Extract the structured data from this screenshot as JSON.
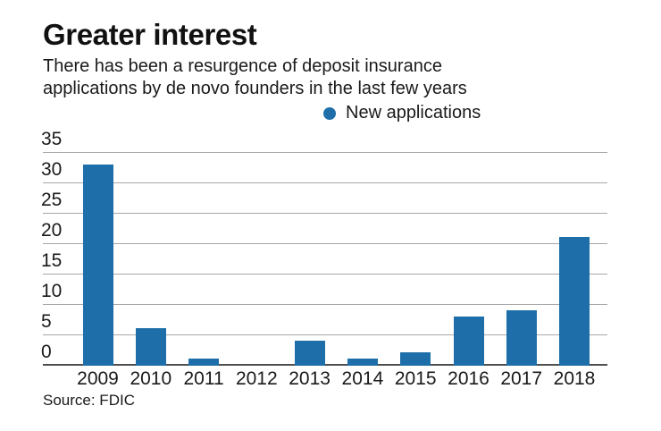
{
  "header": {
    "title": "Greater interest",
    "subtitle_line1": "There has been a resurgence of deposit insurance",
    "subtitle_line2": "applications by de novo founders in the last few years"
  },
  "legend": {
    "label": "New applications"
  },
  "chart_data": {
    "type": "bar",
    "title": "Greater interest",
    "subtitle": "There has been a resurgence of deposit insurance applications by de novo founders in the last few years",
    "series_name": "New applications",
    "categories": [
      "2009",
      "2010",
      "2011",
      "2012",
      "2013",
      "2014",
      "2015",
      "2016",
      "2017",
      "2018"
    ],
    "values": [
      33,
      6,
      1,
      0,
      4,
      1,
      2,
      8,
      9,
      21
    ],
    "xlabel": "",
    "ylabel": "",
    "ylim": [
      0,
      35
    ],
    "yticks": [
      0,
      5,
      10,
      15,
      20,
      25,
      30,
      35
    ],
    "grid": true,
    "legend_position": "top-center",
    "bar_color": "#1e6fa9"
  },
  "colors": {
    "bar": "#1e6fa9",
    "gridline": "#a7a7a7",
    "axis": "#4f4f4f",
    "text": "#1a1a1a"
  },
  "footer": {
    "source": "Source: FDIC"
  }
}
